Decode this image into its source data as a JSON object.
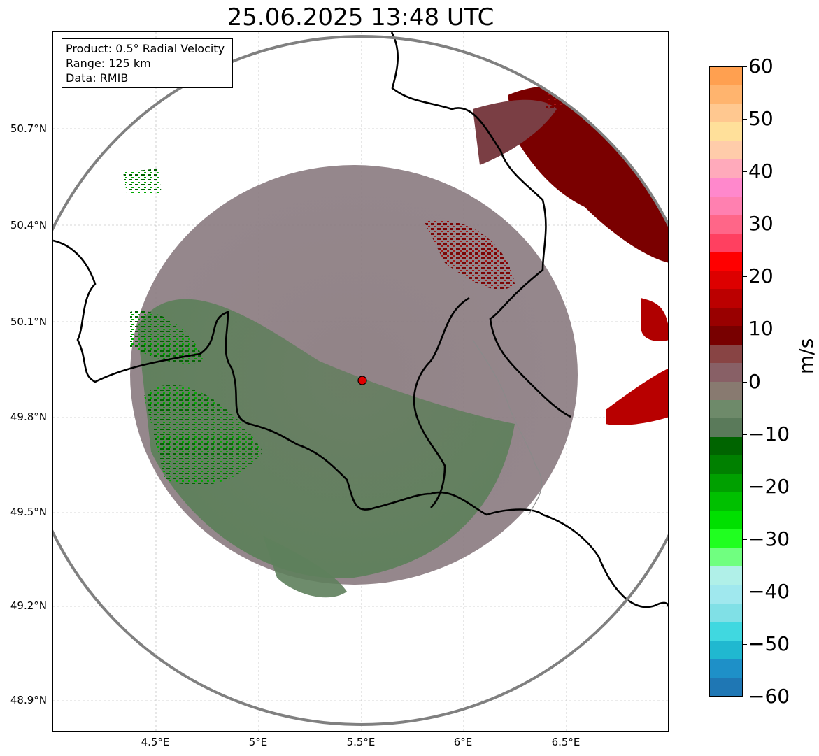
{
  "title": "25.06.2025 13:48 UTC",
  "info": {
    "product": "Product: 0.5° Radial Velocity",
    "range": "Range: 125 km",
    "data": "Data: RMIB"
  },
  "map": {
    "lon_range": [
      4.0,
      7.0
    ],
    "lat_range": [
      48.8,
      50.99
    ],
    "lat_ticks": [
      "50.7°N",
      "50.4°N",
      "50.1°N",
      "49.8°N",
      "49.5°N",
      "49.2°N",
      "48.9°N"
    ],
    "lon_ticks": [
      "4.5°E",
      "5°E",
      "5.5°E",
      "6°E",
      "6.5°E"
    ],
    "radar_site": {
      "lon": 5.505,
      "lat": 49.914,
      "name": "radar-site"
    },
    "range_ring_km": 125,
    "gridlines": true
  },
  "colorbar": {
    "unit": "m/s",
    "range": [
      -60,
      60
    ],
    "ticks": [
      "60",
      "50",
      "40",
      "30",
      "20",
      "10",
      "0",
      "−10",
      "−20",
      "−30",
      "−40",
      "−50",
      "−60"
    ],
    "colors_top_to_bottom": [
      "#ffa050",
      "#ffb46e",
      "#ffc890",
      "#ffe09a",
      "#ffccaa",
      "#ffaabb",
      "#ff88cc",
      "#ff80b0",
      "#ff6688",
      "#ff4060",
      "#ff0000",
      "#dd0000",
      "#bb0000",
      "#990000",
      "#780000",
      "#884444",
      "#886066",
      "#887a70",
      "#6e8a6a",
      "#5a7a5a",
      "#006400",
      "#008000",
      "#00a000",
      "#00c000",
      "#00e000",
      "#20ff20",
      "#70ff80",
      "#b0f0e8",
      "#a0e8ee",
      "#80e0e6",
      "#40d8e0",
      "#20b8d0",
      "#1e90c8",
      "#1f77b4"
    ],
    "accent_colors": {
      "incoming": "#006400",
      "outgoing": "#780000",
      "near_zero": "#887a70"
    }
  }
}
